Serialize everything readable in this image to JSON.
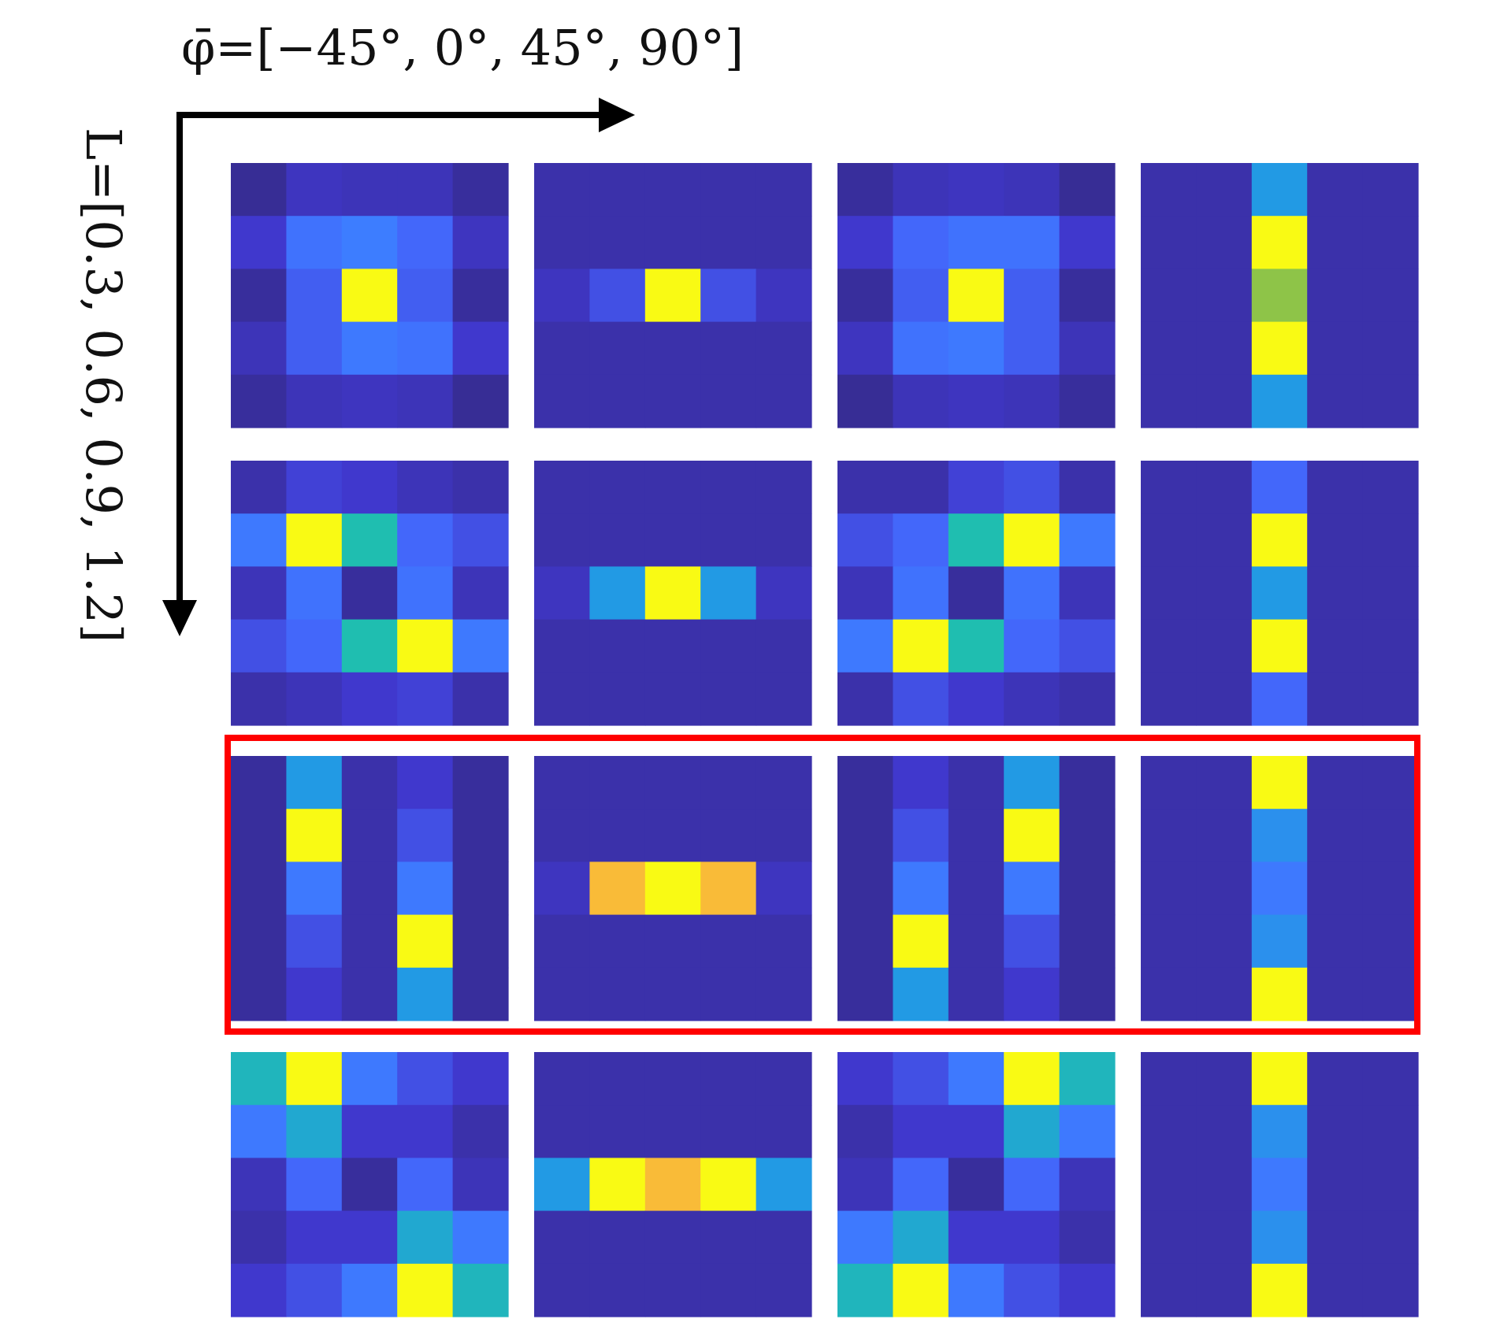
{
  "chart_data": {
    "type": "heatmap",
    "x_axis_label": "φ̄=[−45°, 0°, 45°, 90°]",
    "y_axis_label": "L=[0.3, 0.6, 0.9, 1.2]",
    "columns_phi": [
      "−45°",
      "0°",
      "45°",
      "90°"
    ],
    "rows_L": [
      "0.3",
      "0.6",
      "0.9",
      "1.2"
    ],
    "highlighted_row": 2,
    "highlight_color": "#ff0000",
    "colormap": "parula",
    "value_range": [
      0,
      1
    ],
    "panel_cells": "5x5",
    "panels": [
      [
        [
          [
            0.02,
            0.08,
            0.07,
            0.07,
            0.03
          ],
          [
            0.1,
            0.25,
            0.3,
            0.2,
            0.08
          ],
          [
            0.03,
            0.18,
            1.0,
            0.18,
            0.03
          ],
          [
            0.07,
            0.18,
            0.28,
            0.25,
            0.1
          ],
          [
            0.03,
            0.07,
            0.08,
            0.07,
            0.02
          ]
        ],
        [
          [
            0.05,
            0.05,
            0.05,
            0.05,
            0.05
          ],
          [
            0.05,
            0.05,
            0.05,
            0.05,
            0.05
          ],
          [
            0.08,
            0.15,
            1.0,
            0.15,
            0.08
          ],
          [
            0.05,
            0.05,
            0.05,
            0.05,
            0.05
          ],
          [
            0.05,
            0.05,
            0.05,
            0.05,
            0.05
          ]
        ],
        [
          [
            0.03,
            0.07,
            0.08,
            0.07,
            0.02
          ],
          [
            0.1,
            0.2,
            0.25,
            0.25,
            0.1
          ],
          [
            0.03,
            0.18,
            1.0,
            0.18,
            0.03
          ],
          [
            0.08,
            0.25,
            0.28,
            0.18,
            0.07
          ],
          [
            0.02,
            0.07,
            0.08,
            0.07,
            0.03
          ]
        ],
        [
          [
            0.05,
            0.05,
            0.45,
            0.05,
            0.05
          ],
          [
            0.05,
            0.05,
            1.0,
            0.05,
            0.05
          ],
          [
            0.05,
            0.05,
            0.72,
            0.05,
            0.05
          ],
          [
            0.05,
            0.05,
            1.0,
            0.05,
            0.05
          ],
          [
            0.05,
            0.05,
            0.45,
            0.05,
            0.05
          ]
        ]
      ],
      [
        [
          [
            0.05,
            0.12,
            0.1,
            0.07,
            0.05
          ],
          [
            0.28,
            1.0,
            0.58,
            0.2,
            0.15
          ],
          [
            0.07,
            0.25,
            0.03,
            0.25,
            0.07
          ],
          [
            0.15,
            0.2,
            0.58,
            1.0,
            0.28
          ],
          [
            0.05,
            0.07,
            0.1,
            0.12,
            0.05
          ]
        ],
        [
          [
            0.05,
            0.05,
            0.05,
            0.05,
            0.05
          ],
          [
            0.05,
            0.05,
            0.05,
            0.05,
            0.05
          ],
          [
            0.08,
            0.45,
            1.0,
            0.45,
            0.08
          ],
          [
            0.05,
            0.05,
            0.05,
            0.05,
            0.05
          ],
          [
            0.05,
            0.05,
            0.05,
            0.05,
            0.05
          ]
        ],
        [
          [
            0.05,
            0.05,
            0.12,
            0.15,
            0.05
          ],
          [
            0.15,
            0.2,
            0.58,
            1.0,
            0.28
          ],
          [
            0.07,
            0.25,
            0.03,
            0.25,
            0.07
          ],
          [
            0.28,
            1.0,
            0.58,
            0.2,
            0.15
          ],
          [
            0.05,
            0.15,
            0.1,
            0.07,
            0.05
          ]
        ],
        [
          [
            0.05,
            0.05,
            0.2,
            0.05,
            0.05
          ],
          [
            0.05,
            0.05,
            1.0,
            0.05,
            0.05
          ],
          [
            0.05,
            0.05,
            0.45,
            0.05,
            0.05
          ],
          [
            0.05,
            0.05,
            1.0,
            0.05,
            0.05
          ],
          [
            0.05,
            0.05,
            0.2,
            0.05,
            0.05
          ]
        ]
      ],
      [
        [
          [
            0.03,
            0.45,
            0.05,
            0.1,
            0.03
          ],
          [
            0.03,
            1.0,
            0.05,
            0.15,
            0.03
          ],
          [
            0.03,
            0.28,
            0.05,
            0.28,
            0.03
          ],
          [
            0.03,
            0.15,
            0.05,
            1.0,
            0.03
          ],
          [
            0.03,
            0.1,
            0.05,
            0.45,
            0.03
          ]
        ],
        [
          [
            0.05,
            0.05,
            0.05,
            0.05,
            0.05
          ],
          [
            0.05,
            0.05,
            0.05,
            0.05,
            0.05
          ],
          [
            0.08,
            0.85,
            1.0,
            0.85,
            0.08
          ],
          [
            0.05,
            0.05,
            0.05,
            0.05,
            0.05
          ],
          [
            0.05,
            0.05,
            0.05,
            0.05,
            0.05
          ]
        ],
        [
          [
            0.03,
            0.1,
            0.05,
            0.45,
            0.03
          ],
          [
            0.03,
            0.15,
            0.05,
            1.0,
            0.03
          ],
          [
            0.03,
            0.28,
            0.05,
            0.28,
            0.03
          ],
          [
            0.03,
            1.0,
            0.05,
            0.15,
            0.03
          ],
          [
            0.03,
            0.45,
            0.05,
            0.1,
            0.03
          ]
        ],
        [
          [
            0.05,
            0.05,
            1.0,
            0.05,
            0.05
          ],
          [
            0.05,
            0.05,
            0.4,
            0.05,
            0.05
          ],
          [
            0.05,
            0.05,
            0.28,
            0.05,
            0.05
          ],
          [
            0.05,
            0.05,
            0.4,
            0.05,
            0.05
          ],
          [
            0.05,
            0.05,
            1.0,
            0.05,
            0.05
          ]
        ]
      ],
      [
        [
          [
            0.55,
            1.0,
            0.28,
            0.15,
            0.1
          ],
          [
            0.28,
            0.5,
            0.1,
            0.1,
            0.05
          ],
          [
            0.07,
            0.2,
            0.03,
            0.2,
            0.07
          ],
          [
            0.05,
            0.1,
            0.1,
            0.5,
            0.28
          ],
          [
            0.1,
            0.15,
            0.28,
            1.0,
            0.55
          ]
        ],
        [
          [
            0.05,
            0.05,
            0.05,
            0.05,
            0.05
          ],
          [
            0.05,
            0.05,
            0.05,
            0.05,
            0.05
          ],
          [
            0.45,
            1.0,
            0.85,
            1.0,
            0.45
          ],
          [
            0.05,
            0.05,
            0.05,
            0.05,
            0.05
          ],
          [
            0.05,
            0.05,
            0.05,
            0.05,
            0.05
          ]
        ],
        [
          [
            0.1,
            0.15,
            0.28,
            1.0,
            0.55
          ],
          [
            0.05,
            0.1,
            0.1,
            0.5,
            0.28
          ],
          [
            0.07,
            0.2,
            0.03,
            0.2,
            0.07
          ],
          [
            0.28,
            0.5,
            0.1,
            0.1,
            0.05
          ],
          [
            0.55,
            1.0,
            0.28,
            0.15,
            0.1
          ]
        ],
        [
          [
            0.05,
            0.05,
            1.0,
            0.05,
            0.05
          ],
          [
            0.05,
            0.05,
            0.4,
            0.05,
            0.05
          ],
          [
            0.05,
            0.05,
            0.28,
            0.05,
            0.05
          ],
          [
            0.05,
            0.05,
            0.4,
            0.05,
            0.05
          ],
          [
            0.05,
            0.05,
            1.0,
            0.05,
            0.05
          ]
        ]
      ]
    ]
  }
}
